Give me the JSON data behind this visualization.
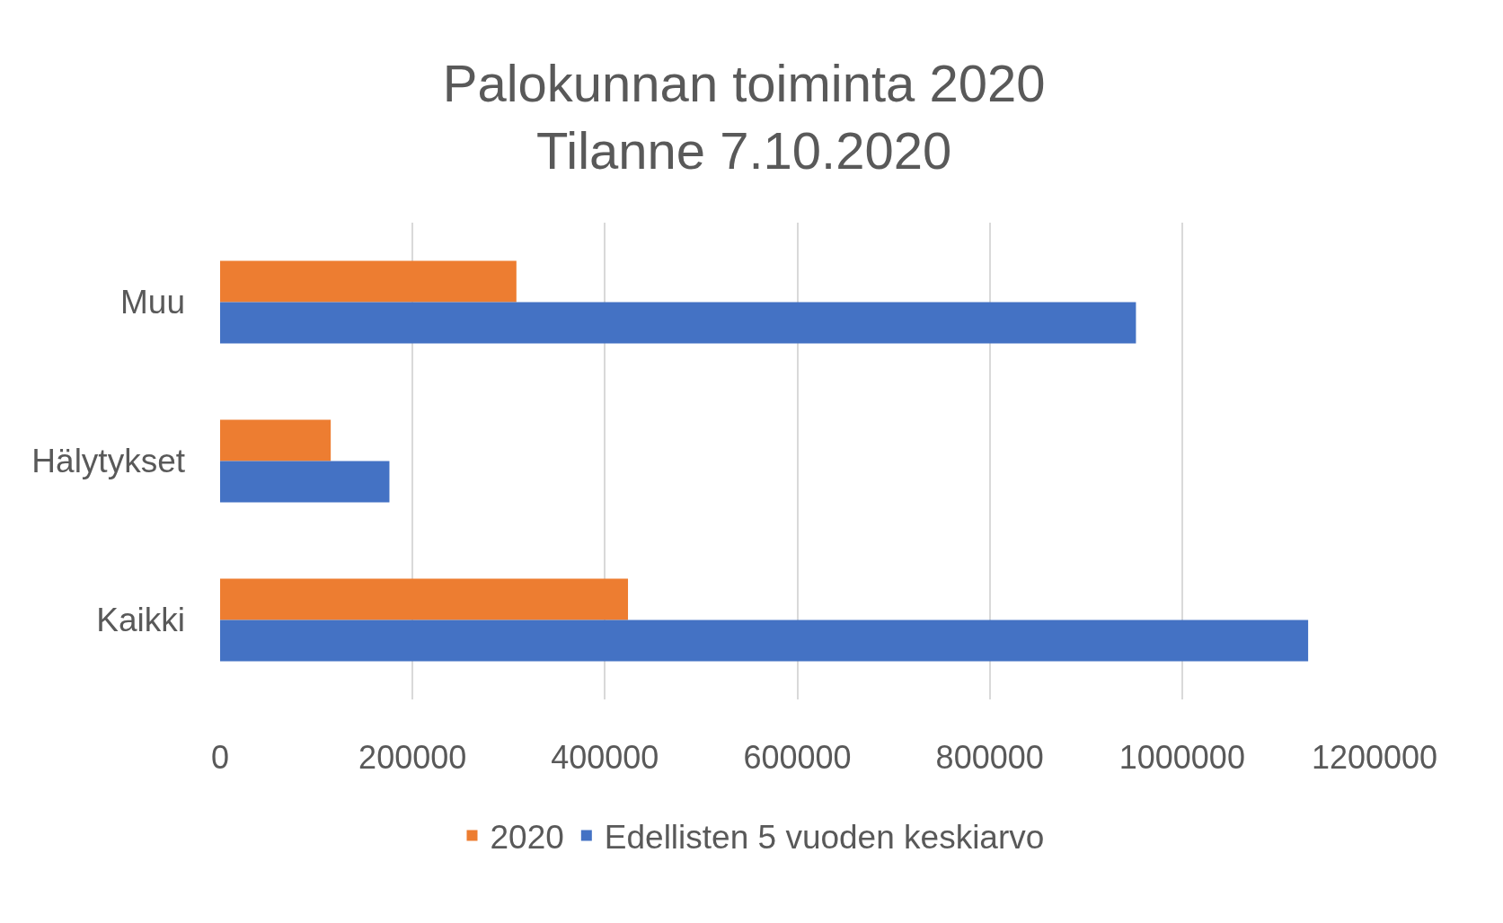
{
  "chart_data": {
    "type": "bar",
    "orientation": "horizontal",
    "title": "Palokunnan toiminta 2020\nTilanne 7.10.2020",
    "categories": [
      "Muu",
      "Hälytykset",
      "Kaikki"
    ],
    "series": [
      {
        "name": "2020",
        "color": "#ed7d31",
        "values": [
          308000,
          115000,
          424000
        ]
      },
      {
        "name": "Edellisten 5 vuoden keskiarvo",
        "color": "#4472c4",
        "values": [
          952000,
          176000,
          1131000
        ]
      }
    ],
    "xlim": [
      0,
      1200000
    ],
    "xticks": [
      0,
      200000,
      400000,
      600000,
      800000,
      1000000,
      1200000
    ],
    "grid": "x",
    "legend": "bottom"
  }
}
